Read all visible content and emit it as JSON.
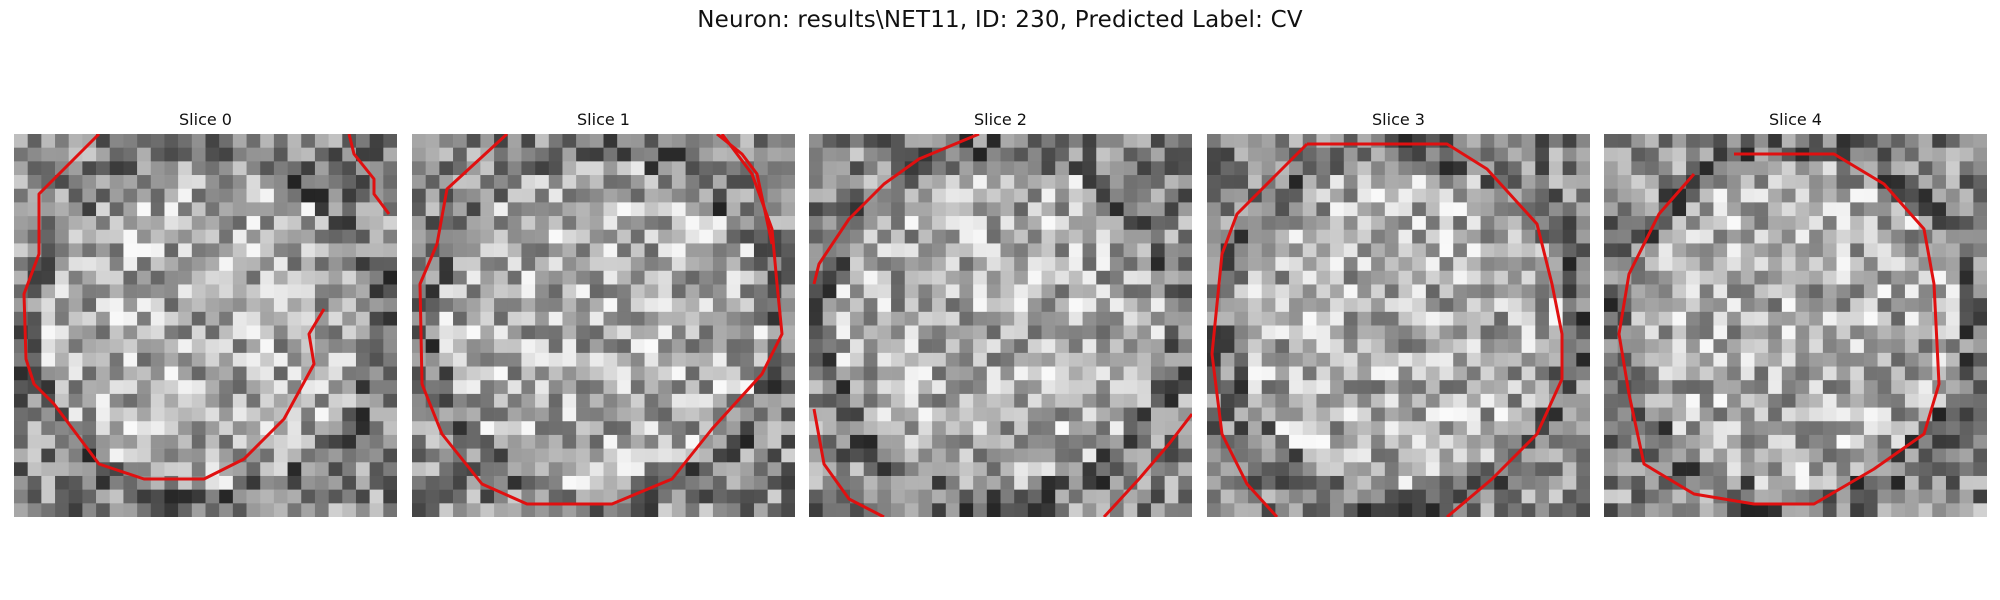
{
  "figure": {
    "title": "Neuron: results\\NET11, ID: 230, Predicted Label: CV"
  },
  "image_style": {
    "colormap": "gray",
    "contour_color": "#e01010"
  },
  "slices": [
    {
      "title": "Slice 0"
    },
    {
      "title": "Slice 1"
    },
    {
      "title": "Slice 2"
    },
    {
      "title": "Slice 3"
    },
    {
      "title": "Slice 4"
    }
  ]
}
